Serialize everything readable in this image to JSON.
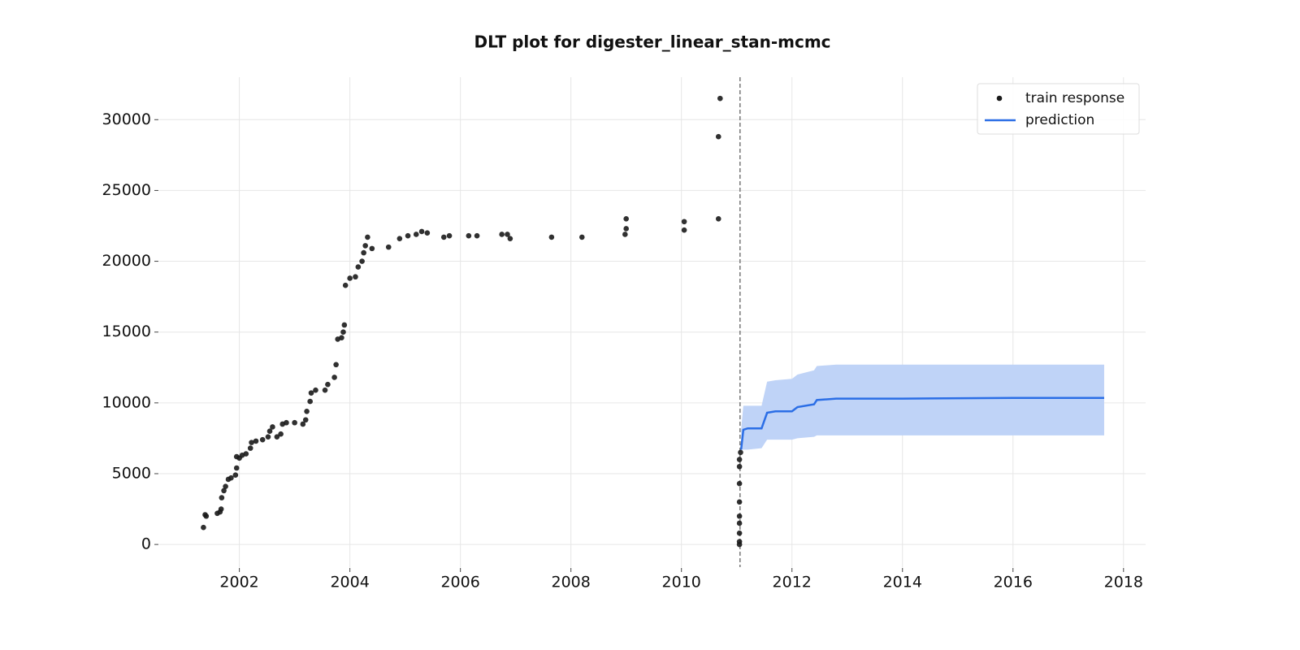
{
  "chart_data": {
    "type": "scatter_forecast",
    "title": "DLT plot for digester_linear_stan-mcmc",
    "xlim": [
      2000.55,
      2018.4
    ],
    "xticks": [
      2002,
      2004,
      2006,
      2008,
      2010,
      2012,
      2014,
      2016,
      2018
    ],
    "ylim": [
      -1600,
      33000
    ],
    "yticks": [
      0,
      5000,
      10000,
      15000,
      20000,
      25000,
      30000
    ],
    "grid": true,
    "legend": "upper right",
    "split_x": 2011.06,
    "series": [
      {
        "name": "train response",
        "color": "#1a1a1a",
        "x": [
          2001.35,
          2001.38,
          2001.4,
          2001.6,
          2001.65,
          2001.67,
          2001.68,
          2001.72,
          2001.75,
          2001.8,
          2001.85,
          2001.93,
          2001.95,
          2001.95,
          2002.0,
          2002.05,
          2002.12,
          2002.2,
          2002.22,
          2002.3,
          2002.42,
          2002.52,
          2002.55,
          2002.6,
          2002.68,
          2002.75,
          2002.78,
          2002.85,
          2003.0,
          2003.15,
          2003.2,
          2003.22,
          2003.28,
          2003.3,
          2003.38,
          2003.55,
          2003.6,
          2003.72,
          2003.75,
          2003.78,
          2003.85,
          2003.88,
          2003.9,
          2003.92,
          2004.0,
          2004.1,
          2004.15,
          2004.22,
          2004.25,
          2004.28,
          2004.32,
          2004.4,
          2004.7,
          2004.9,
          2005.05,
          2005.2,
          2005.3,
          2005.4,
          2005.7,
          2005.8,
          2006.15,
          2006.3,
          2006.75,
          2006.85,
          2006.9,
          2007.65,
          2008.2,
          2008.98,
          2009.0,
          2009.0,
          2010.05,
          2010.05,
          2010.67,
          2010.67,
          2010.7,
          2011.05,
          2011.05,
          2011.05,
          2011.05,
          2011.05,
          2011.05,
          2011.05,
          2011.05,
          2011.05,
          2011.07
        ],
        "values": [
          1200,
          2100,
          2000,
          2200,
          2300,
          2500,
          3300,
          3800,
          4100,
          4600,
          4700,
          4900,
          5400,
          6200,
          6100,
          6300,
          6400,
          6800,
          7200,
          7300,
          7400,
          7600,
          8000,
          8300,
          7600,
          7800,
          8500,
          8600,
          8600,
          8500,
          8800,
          9400,
          10100,
          10700,
          10900,
          10900,
          11300,
          11800,
          12700,
          14500,
          14600,
          15000,
          15500,
          18300,
          18800,
          18900,
          19600,
          20000,
          20600,
          21100,
          21700,
          20900,
          21000,
          21600,
          21800,
          21900,
          22100,
          22000,
          21700,
          21800,
          21800,
          21800,
          21900,
          21900,
          21600,
          21700,
          21700,
          21900,
          22300,
          23000,
          22200,
          22800,
          23000,
          28800,
          31500,
          6000,
          5500,
          4300,
          3000,
          2000,
          1500,
          800,
          200,
          0,
          6500
        ]
      },
      {
        "name": "prediction",
        "color": "#2b6ee6",
        "band_color": "#bfd3f7",
        "x": [
          2011.08,
          2011.12,
          2011.2,
          2011.45,
          2011.55,
          2011.7,
          2012.0,
          2012.1,
          2012.4,
          2012.45,
          2012.8,
          2014,
          2016,
          2017.65
        ],
        "values": [
          6700,
          8100,
          8200,
          8200,
          9300,
          9400,
          9400,
          9700,
          9900,
          10200,
          10300,
          10300,
          10350,
          10350
        ],
        "lower": [
          6700,
          6700,
          6700,
          6800,
          7400,
          7400,
          7400,
          7500,
          7600,
          7700,
          7700,
          7700,
          7700,
          7700
        ],
        "upper": [
          8100,
          9800,
          9800,
          9800,
          11500,
          11600,
          11700,
          12000,
          12300,
          12600,
          12700,
          12700,
          12700,
          12700
        ]
      }
    ]
  }
}
